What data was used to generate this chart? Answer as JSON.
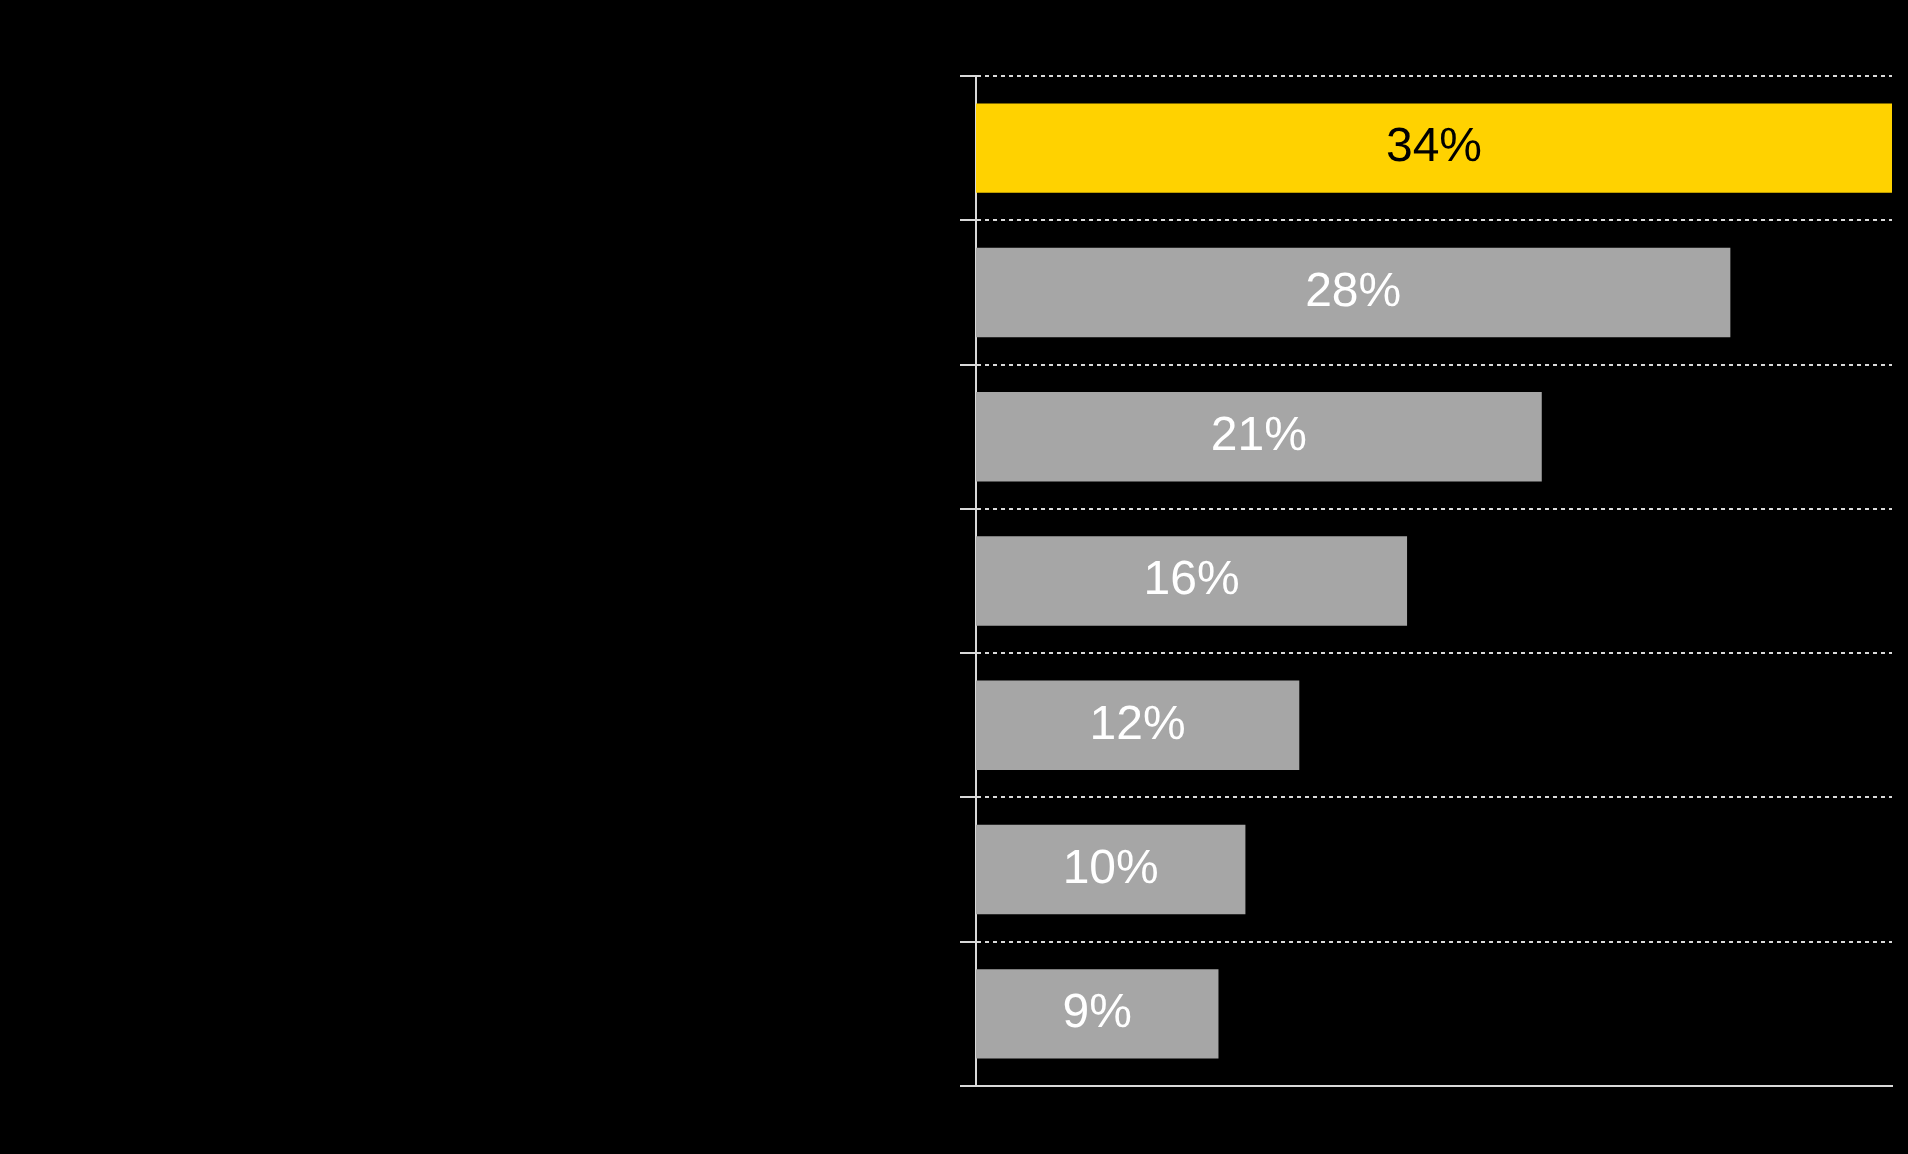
{
  "chart_data": {
    "type": "bar",
    "orientation": "horizontal",
    "categories": [
      null,
      null,
      null,
      null,
      null,
      null,
      null
    ],
    "values": [
      34,
      28,
      21,
      16,
      12,
      10,
      9
    ],
    "colors": [
      "#ffd200",
      "#a6a6a6",
      "#a6a6a6",
      "#a6a6a6",
      "#a6a6a6",
      "#a6a6a6",
      "#a6a6a6"
    ],
    "value_labels": [
      "34%",
      "28%",
      "21%",
      "16%",
      "12%",
      "10%",
      "9%"
    ],
    "grid": "y",
    "tick_labels": false
  }
}
